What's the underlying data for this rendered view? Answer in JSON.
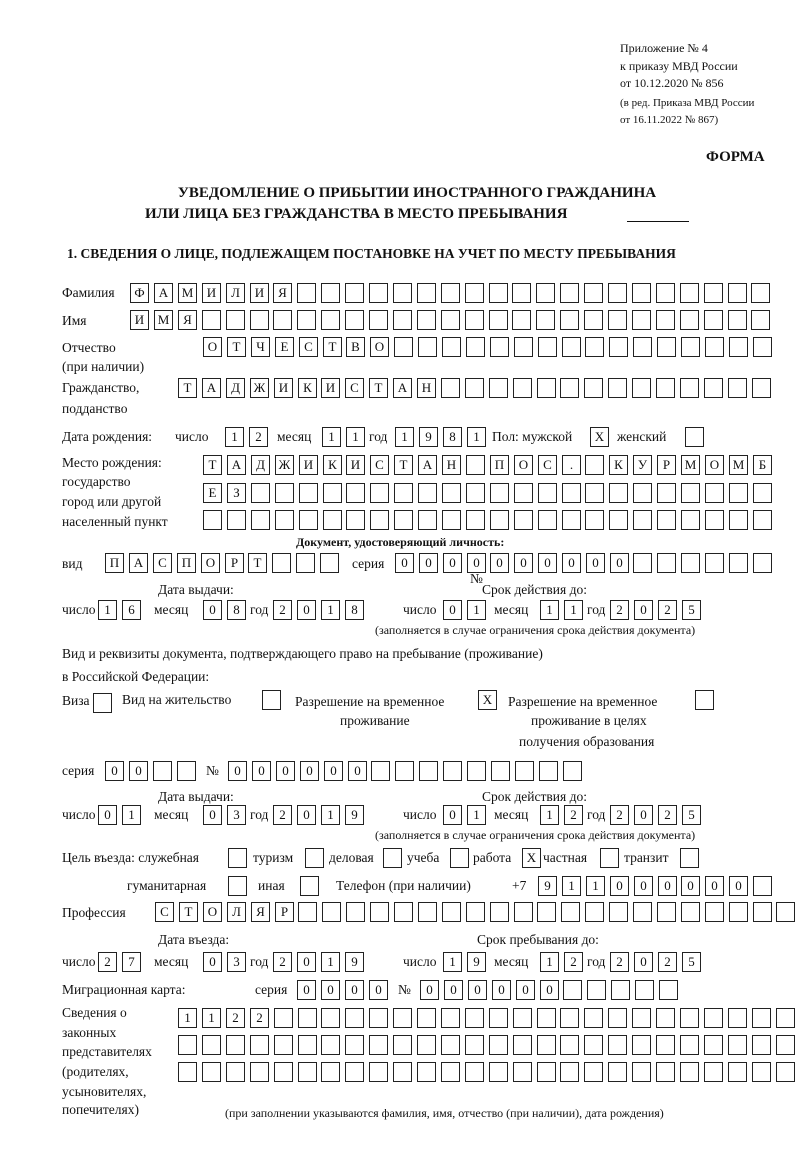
{
  "header": {
    "appendix": [
      "Приложение № 4",
      "к приказу МВД России",
      "от 10.12.2020 № 856"
    ],
    "revision": [
      "(в ред. Приказа МВД России",
      "от 16.11.2022 № 867)"
    ],
    "form_label": "ФОРМА",
    "title_line1": "УВЕДОМЛЕНИЕ О ПРИБЫТИИ ИНОСТРАННОГО ГРАЖДАНИНА",
    "title_line2": "ИЛИ ЛИЦА БЕЗ ГРАЖДАНСТВА В МЕСТО ПРЕБЫВАНИЯ",
    "section1_title": "1. СВЕДЕНИЯ О ЛИЦЕ, ПОДЛЕЖАЩЕМ ПОСТАНОВКЕ НА УЧЕТ ПО МЕСТУ ПРЕБЫВАНИЯ"
  },
  "labels": {
    "surname": "Фамилия",
    "name": "Имя",
    "patronymic": "Отчество",
    "patronymic_note": "(при наличии)",
    "citizenship": "Гражданство,",
    "citizenship2": "подданство",
    "birth_date": "Дата рождения:",
    "day": "число",
    "month": "месяц",
    "year": "год",
    "sex": "Пол: мужской",
    "female": "женский",
    "birthplace": [
      "Место рождения:",
      "государство",
      "город или другой",
      "населенный пункт"
    ],
    "id_doc": "Документ, удостоверяющий личность:",
    "kind": "вид",
    "series": "серия",
    "number": "№",
    "issue_date": "Дата выдачи:",
    "valid_until": "Срок действия до:",
    "validity_note": "(заполняется в случае ограничения срока действия документа)",
    "stay_doc": "Вид и реквизиты документа, подтверждающего право на пребывание (проживание)",
    "stay_doc2": "в Российской Федерации:",
    "visa": "Виза",
    "residence": "Вид на жительство",
    "temp_permit": [
      "Разрешение на временное",
      "проживание"
    ],
    "temp_permit_edu": [
      "Разрешение на временное",
      "проживание в целях",
      "получения образования"
    ],
    "purpose": "Цель въезда: служебная",
    "tourism": "туризм",
    "business": "деловая",
    "study": "учеба",
    "work": "работа",
    "private": "частная",
    "transit": "транзит",
    "humanitarian": "гуманитарная",
    "other": "иная",
    "phone": "Телефон (при наличии)",
    "phone_prefix": "+7",
    "profession": "Профессия",
    "entry_date": "Дата въезда:",
    "stay_until": "Срок пребывания до:",
    "migration_card": "Миграционная карта:",
    "representatives": [
      "Сведения о",
      "законных",
      "представителях",
      "(родителях,",
      "усыновителях,",
      "попечителях)"
    ],
    "representatives_note": "(при заполнении указываются фамилия, имя, отчество (при наличии), дата рождения)"
  },
  "values": {
    "surname": [
      "Ф",
      "А",
      "М",
      "И",
      "Л",
      "И",
      "Я",
      "",
      "",
      "",
      "",
      "",
      "",
      "",
      "",
      "",
      "",
      "",
      "",
      "",
      "",
      "",
      "",
      "",
      "",
      "",
      ""
    ],
    "name": [
      "И",
      "М",
      "Я",
      "",
      "",
      "",
      "",
      "",
      "",
      "",
      "",
      "",
      "",
      "",
      "",
      "",
      "",
      "",
      "",
      "",
      "",
      "",
      "",
      "",
      "",
      "",
      ""
    ],
    "patronymic": [
      "О",
      "Т",
      "Ч",
      "Е",
      "С",
      "Т",
      "В",
      "О",
      "",
      "",
      "",
      "",
      "",
      "",
      "",
      "",
      "",
      "",
      "",
      "",
      "",
      "",
      "",
      ""
    ],
    "citizenship": [
      "Т",
      "А",
      "Д",
      "Ж",
      "И",
      "К",
      "И",
      "С",
      "Т",
      "А",
      "Н",
      "",
      "",
      "",
      "",
      "",
      "",
      "",
      "",
      "",
      "",
      "",
      "",
      "",
      ""
    ],
    "birth_day": [
      "1",
      "2"
    ],
    "birth_month": [
      "1",
      "1"
    ],
    "birth_year": [
      "1",
      "9",
      "8",
      "1"
    ],
    "sex_male": "X",
    "sex_female": "",
    "birthplace_1": [
      "Т",
      "А",
      "Д",
      "Ж",
      "И",
      "К",
      "И",
      "С",
      "Т",
      "А",
      "Н",
      "",
      "П",
      "О",
      "С",
      ".",
      "",
      "К",
      "У",
      "Р",
      "М",
      "О",
      "М",
      "Б"
    ],
    "birthplace_2": [
      "Е",
      "З",
      "",
      "",
      "",
      "",
      "",
      "",
      "",
      "",
      "",
      "",
      "",
      "",
      "",
      "",
      "",
      "",
      "",
      "",
      "",
      "",
      "",
      ""
    ],
    "birthplace_3": [
      "",
      "",
      "",
      "",
      "",
      "",
      "",
      "",
      "",
      "",
      "",
      "",
      "",
      "",
      "",
      "",
      "",
      "",
      "",
      "",
      "",
      "",
      "",
      ""
    ],
    "id_kind": [
      "П",
      "А",
      "С",
      "П",
      "О",
      "Р",
      "Т",
      "",
      "",
      ""
    ],
    "id_series": [
      "0",
      "0",
      "0",
      "0"
    ],
    "id_number": [
      "0",
      "0",
      "0",
      "0",
      "0",
      "0",
      "",
      "",
      "",
      "",
      "",
      ""
    ],
    "id_issue_day": [
      "1",
      "6"
    ],
    "id_issue_month": [
      "0",
      "8"
    ],
    "id_issue_year": [
      "2",
      "0",
      "1",
      "8"
    ],
    "id_valid_day": [
      "0",
      "1"
    ],
    "id_valid_month": [
      "1",
      "1"
    ],
    "id_valid_year": [
      "2",
      "0",
      "2",
      "5"
    ],
    "visa": "",
    "residence": "",
    "temp_permit": "X",
    "temp_permit_edu": "",
    "stay_series": [
      "0",
      "0",
      "",
      ""
    ],
    "stay_number": [
      "0",
      "0",
      "0",
      "0",
      "0",
      "0",
      "",
      "",
      "",
      "",
      "",
      "",
      "",
      "",
      ""
    ],
    "stay_issue_day": [
      "0",
      "1"
    ],
    "stay_issue_month": [
      "0",
      "3"
    ],
    "stay_issue_year": [
      "2",
      "0",
      "1",
      "9"
    ],
    "stay_valid_day": [
      "0",
      "1"
    ],
    "stay_valid_month": [
      "1",
      "2"
    ],
    "stay_valid_year": [
      "2",
      "0",
      "2",
      "5"
    ],
    "purpose_official": "",
    "purpose_tourism": "",
    "purpose_business": "",
    "purpose_study": "",
    "purpose_work": "X",
    "purpose_private": "",
    "purpose_transit": "",
    "purpose_humanitarian": "",
    "purpose_other": "",
    "phone": [
      "9",
      "1",
      "1",
      "0",
      "0",
      "0",
      "0",
      "0",
      "0",
      ""
    ],
    "profession": [
      "С",
      "Т",
      "О",
      "Л",
      "Я",
      "Р",
      "",
      "",
      "",
      "",
      "",
      "",
      "",
      "",
      "",
      "",
      "",
      "",
      "",
      "",
      "",
      "",
      "",
      "",
      "",
      "",
      ""
    ],
    "entry_day": [
      "2",
      "7"
    ],
    "entry_month": [
      "0",
      "3"
    ],
    "entry_year": [
      "2",
      "0",
      "1",
      "9"
    ],
    "stay_until_day": [
      "1",
      "9"
    ],
    "stay_until_month": [
      "1",
      "2"
    ],
    "stay_until_year": [
      "2",
      "0",
      "2",
      "5"
    ],
    "mig_series": [
      "0",
      "0",
      "0",
      "0"
    ],
    "mig_number": [
      "0",
      "0",
      "0",
      "0",
      "0",
      "0",
      "",
      "",
      "",
      "",
      ""
    ],
    "rep_1": [
      "1",
      "1",
      "2",
      "2",
      "",
      "",
      "",
      "",
      "",
      "",
      "",
      "",
      "",
      "",
      "",
      "",
      "",
      "",
      "",
      "",
      "",
      "",
      "",
      "",
      "",
      ""
    ],
    "rep_2": [
      "",
      "",
      "",
      "",
      "",
      "",
      "",
      "",
      "",
      "",
      "",
      "",
      "",
      "",
      "",
      "",
      "",
      "",
      "",
      "",
      "",
      "",
      "",
      "",
      "",
      ""
    ],
    "rep_3": [
      "",
      "",
      "",
      "",
      "",
      "",
      "",
      "",
      "",
      "",
      "",
      "",
      "",
      "",
      "",
      "",
      "",
      "",
      "",
      "",
      "",
      "",
      "",
      "",
      "",
      ""
    ]
  }
}
